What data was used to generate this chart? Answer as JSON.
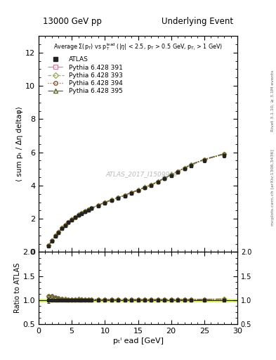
{
  "title_left": "13000 GeV pp",
  "title_right": "Underlying Event",
  "watermark": "ATLAS_2017_I1509919",
  "right_label": "Rivet 3.1.10, ≥ 3.1M events",
  "right_label2": "mcplots.cern.ch [arXiv:1306.3436]",
  "ylabel_main": "⟨ sum pₜ / Δη deltaφ⟩",
  "ylabel_ratio": "Ratio to ATLAS",
  "xlabel": "pₜˡ ead [GeV]",
  "xlim": [
    0,
    30
  ],
  "ylim_main": [
    0,
    13
  ],
  "ylim_ratio": [
    0.5,
    2.0
  ],
  "yticks_main": [
    0,
    2,
    4,
    6,
    8,
    10,
    12
  ],
  "yticks_ratio": [
    0.5,
    1.0,
    1.5,
    2.0
  ],
  "atlas_x": [
    1.5,
    2.0,
    2.5,
    3.0,
    3.5,
    4.0,
    4.5,
    5.0,
    5.5,
    6.0,
    6.5,
    7.0,
    7.5,
    8.0,
    9.0,
    10.0,
    11.0,
    12.0,
    13.0,
    14.0,
    15.0,
    16.0,
    17.0,
    18.0,
    19.0,
    20.0,
    21.0,
    22.0,
    23.0,
    25.0,
    28.0
  ],
  "atlas_y": [
    0.35,
    0.65,
    0.95,
    1.18,
    1.4,
    1.6,
    1.78,
    1.94,
    2.08,
    2.2,
    2.32,
    2.42,
    2.52,
    2.62,
    2.78,
    2.95,
    3.1,
    3.25,
    3.38,
    3.55,
    3.68,
    3.85,
    4.0,
    4.2,
    4.4,
    4.6,
    4.8,
    5.0,
    5.2,
    5.5,
    5.8
  ],
  "atlas_yerr": [
    0.02,
    0.02,
    0.02,
    0.03,
    0.03,
    0.03,
    0.03,
    0.03,
    0.03,
    0.03,
    0.03,
    0.03,
    0.03,
    0.04,
    0.04,
    0.04,
    0.05,
    0.05,
    0.05,
    0.05,
    0.06,
    0.06,
    0.06,
    0.07,
    0.07,
    0.08,
    0.08,
    0.09,
    0.09,
    0.1,
    0.12
  ],
  "py391_y": [
    0.38,
    0.7,
    1.0,
    1.22,
    1.43,
    1.62,
    1.8,
    1.96,
    2.1,
    2.23,
    2.34,
    2.44,
    2.54,
    2.63,
    2.8,
    2.97,
    3.12,
    3.26,
    3.4,
    3.56,
    3.7,
    3.87,
    4.02,
    4.22,
    4.42,
    4.63,
    4.83,
    5.03,
    5.23,
    5.55,
    5.88
  ],
  "py393_y": [
    0.38,
    0.7,
    1.0,
    1.22,
    1.44,
    1.63,
    1.81,
    1.97,
    2.11,
    2.24,
    2.35,
    2.46,
    2.56,
    2.65,
    2.82,
    2.99,
    3.14,
    3.29,
    3.42,
    3.59,
    3.73,
    3.9,
    4.05,
    4.25,
    4.45,
    4.66,
    4.86,
    5.06,
    5.27,
    5.58,
    5.9
  ],
  "py394_y": [
    0.38,
    0.7,
    1.0,
    1.22,
    1.44,
    1.62,
    1.8,
    1.96,
    2.1,
    2.23,
    2.34,
    2.44,
    2.54,
    2.63,
    2.8,
    2.97,
    3.12,
    3.27,
    3.4,
    3.57,
    3.71,
    3.87,
    4.02,
    4.22,
    4.42,
    4.63,
    4.83,
    5.03,
    5.23,
    5.55,
    5.88
  ],
  "py395_y": [
    0.38,
    0.7,
    1.0,
    1.22,
    1.44,
    1.63,
    1.81,
    1.97,
    2.11,
    2.24,
    2.36,
    2.46,
    2.56,
    2.65,
    2.82,
    2.99,
    3.14,
    3.28,
    3.42,
    3.59,
    3.73,
    3.9,
    4.05,
    4.25,
    4.45,
    4.66,
    4.86,
    5.06,
    5.27,
    5.58,
    5.92
  ],
  "colors": {
    "atlas": "#222222",
    "py391": "#cc88aa",
    "py393": "#aaaa66",
    "py394": "#885533",
    "py395": "#556633"
  },
  "legend_labels": [
    "ATLAS",
    "Pythia 6.428 391",
    "Pythia 6.428 393",
    "Pythia 6.428 394",
    "Pythia 6.428 395"
  ],
  "bg_color": "#ffffff",
  "ratio_line_color": "#44bb44",
  "ratio_band_color": "#eeee00"
}
